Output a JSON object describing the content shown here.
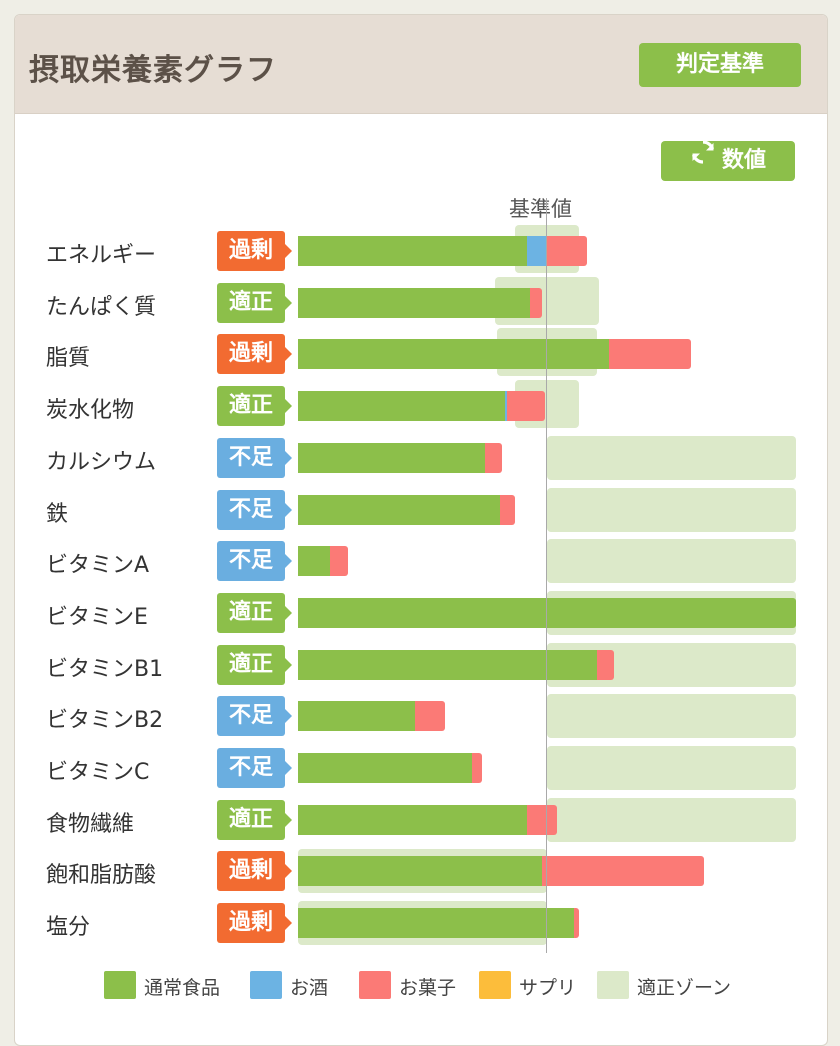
{
  "header": {
    "title": "摂取栄養素グラフ",
    "criteria_button": "判定基準",
    "value_button": "数値"
  },
  "colors": {
    "normal": "#8cbf4a",
    "alcohol": "#6cb3e3",
    "snacks": "#fb7a76",
    "supplement": "#fcbd3b",
    "zone": "#dce9c9",
    "excess": "#f26b31",
    "ok": "#8cbf4a",
    "short": "#6aaee0"
  },
  "chart_data": {
    "type": "bar",
    "stacked": true,
    "orientation": "horizontal",
    "reference_label": "基準値",
    "categories": [
      "エネルギー",
      "たんぱく質",
      "脂質",
      "炭水化物",
      "カルシウム",
      "鉄",
      "ビタミンA",
      "ビタミンE",
      "ビタミンB1",
      "ビタミンB2",
      "ビタミンC",
      "食物繊維",
      "飽和脂肪酸",
      "塩分"
    ],
    "status": [
      "過剰",
      "適正",
      "過剰",
      "適正",
      "不足",
      "不足",
      "不足",
      "適正",
      "適正",
      "不足",
      "不足",
      "適正",
      "過剰",
      "過剰"
    ],
    "status_type": [
      "excess",
      "ok",
      "excess",
      "ok",
      "short",
      "short",
      "short",
      "ok",
      "ok",
      "short",
      "short",
      "ok",
      "excess",
      "excess"
    ],
    "series": [
      {
        "name": "通常食品",
        "key": "normal",
        "values": [
          92,
          93,
          125,
          83,
          75,
          81,
          13,
          200,
          120,
          47,
          70,
          92,
          98,
          111
        ]
      },
      {
        "name": "お酒",
        "key": "alcohol",
        "values": [
          8,
          0,
          0,
          1,
          0,
          0,
          0,
          0,
          0,
          0,
          0,
          0,
          0,
          0
        ]
      },
      {
        "name": "お菓子",
        "key": "snacks",
        "values": [
          16,
          5,
          33,
          15,
          7,
          6,
          7,
          0,
          7,
          12,
          4,
          12,
          65,
          2
        ]
      },
      {
        "name": "サプリ",
        "key": "supplement",
        "values": [
          0,
          0,
          0,
          0,
          0,
          0,
          0,
          0,
          0,
          0,
          0,
          0,
          0,
          0
        ]
      }
    ],
    "appropriate_zone": [
      [
        87,
        113
      ],
      [
        79,
        121
      ],
      [
        80,
        120
      ],
      [
        87,
        113
      ],
      [
        100,
        200
      ],
      [
        100,
        200
      ],
      [
        100,
        200
      ],
      [
        100,
        200
      ],
      [
        100,
        200
      ],
      [
        100,
        200
      ],
      [
        100,
        200
      ],
      [
        100,
        200
      ],
      [
        0,
        100
      ],
      [
        0,
        100
      ]
    ],
    "reference_value": 100,
    "xlim": [
      0,
      200
    ],
    "legend": [
      "通常食品",
      "お酒",
      "お菓子",
      "サプリ",
      "適正ゾーン"
    ],
    "legend_position": "bottom"
  }
}
